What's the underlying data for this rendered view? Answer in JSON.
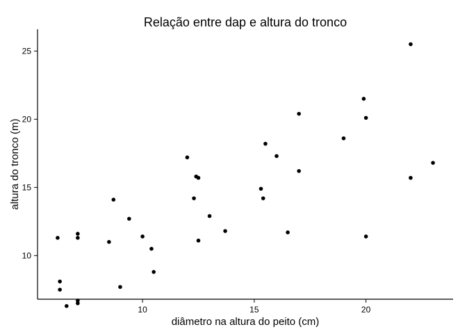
{
  "chart_data": {
    "type": "scatter",
    "title": "Relação entre dap e altura do tronco",
    "xlabel": "diâmetro na altura do peito (cm)",
    "ylabel": "altura do tronco (m)",
    "xlim": [
      5.3,
      23.9
    ],
    "ylim": [
      6.8,
      26.6
    ],
    "xticks": [
      10,
      15,
      20
    ],
    "yticks": [
      10,
      15,
      20,
      25
    ],
    "xtick_labels": [
      "10",
      "15",
      "20"
    ],
    "ytick_labels": [
      "10",
      "15",
      "20",
      "25"
    ],
    "grid": false,
    "legend": "none",
    "point_color": "#000000",
    "points": [
      {
        "x": 6.2,
        "y": 11.3
      },
      {
        "x": 6.3,
        "y": 8.1
      },
      {
        "x": 6.3,
        "y": 7.5
      },
      {
        "x": 6.6,
        "y": 6.3
      },
      {
        "x": 7.1,
        "y": 11.6
      },
      {
        "x": 7.1,
        "y": 11.3
      },
      {
        "x": 7.1,
        "y": 6.7
      },
      {
        "x": 7.1,
        "y": 6.5
      },
      {
        "x": 8.5,
        "y": 11.0
      },
      {
        "x": 8.7,
        "y": 14.1
      },
      {
        "x": 9.0,
        "y": 7.7
      },
      {
        "x": 9.4,
        "y": 12.7
      },
      {
        "x": 10.0,
        "y": 11.4
      },
      {
        "x": 10.4,
        "y": 10.5
      },
      {
        "x": 10.5,
        "y": 8.8
      },
      {
        "x": 12.0,
        "y": 17.2
      },
      {
        "x": 12.3,
        "y": 14.2
      },
      {
        "x": 12.4,
        "y": 15.8
      },
      {
        "x": 12.5,
        "y": 15.7
      },
      {
        "x": 12.5,
        "y": 11.1
      },
      {
        "x": 13.0,
        "y": 12.9
      },
      {
        "x": 13.7,
        "y": 11.8
      },
      {
        "x": 15.3,
        "y": 14.9
      },
      {
        "x": 15.4,
        "y": 14.2
      },
      {
        "x": 15.5,
        "y": 18.2
      },
      {
        "x": 16.0,
        "y": 17.3
      },
      {
        "x": 16.5,
        "y": 11.7
      },
      {
        "x": 17.0,
        "y": 20.4
      },
      {
        "x": 17.0,
        "y": 16.2
      },
      {
        "x": 19.0,
        "y": 18.6
      },
      {
        "x": 19.9,
        "y": 21.5
      },
      {
        "x": 20.0,
        "y": 20.1
      },
      {
        "x": 20.0,
        "y": 11.4
      },
      {
        "x": 22.0,
        "y": 25.5
      },
      {
        "x": 22.0,
        "y": 15.7
      },
      {
        "x": 23.0,
        "y": 16.8
      }
    ]
  }
}
